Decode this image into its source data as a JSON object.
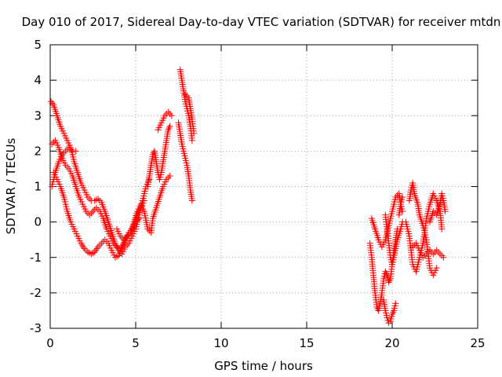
{
  "chart_data": {
    "type": "scatter",
    "title": "Day 010 of 2017, Sidereal Day-to-day VTEC variation (SDTVAR) for receiver mtdn",
    "xlabel": "GPS time / hours",
    "ylabel": "SDTVAR / TECUs",
    "xlim": [
      0,
      25
    ],
    "ylim": [
      -3,
      5
    ],
    "xticks": [
      "0",
      "5",
      "10",
      "15",
      "20",
      "25"
    ],
    "yticks": [
      "-3",
      "-2",
      "-1",
      "0",
      "1",
      "2",
      "3",
      "4",
      "5"
    ],
    "grid": true,
    "marker": "+",
    "series": [
      {
        "name": "SDTVAR",
        "color": "#ff0000",
        "traces": [
          [
            [
              0.05,
              3.4
            ],
            [
              0.2,
              3.3
            ],
            [
              0.4,
              3.0
            ],
            [
              0.6,
              2.7
            ],
            [
              0.8,
              2.5
            ],
            [
              1.0,
              2.3
            ],
            [
              1.2,
              2.1
            ],
            [
              1.4,
              1.7
            ],
            [
              1.6,
              1.4
            ],
            [
              1.8,
              1.1
            ],
            [
              2.0,
              0.9
            ],
            [
              2.2,
              0.7
            ],
            [
              2.4,
              0.6
            ],
            [
              2.6,
              0.6
            ],
            [
              2.8,
              0.65
            ],
            [
              3.0,
              0.55
            ],
            [
              3.2,
              0.3
            ],
            [
              3.4,
              0.0
            ],
            [
              3.6,
              -0.3
            ],
            [
              3.8,
              -0.6
            ],
            [
              4.0,
              -0.8
            ],
            [
              4.2,
              -0.9
            ],
            [
              4.4,
              -0.7
            ],
            [
              4.6,
              -0.6
            ],
            [
              4.8,
              -0.4
            ],
            [
              5.0,
              -0.2
            ],
            [
              5.2,
              0.2
            ],
            [
              5.4,
              0.6
            ],
            [
              5.6,
              1.0
            ],
            [
              5.8,
              1.2
            ]
          ],
          [
            [
              0.1,
              2.2
            ],
            [
              0.3,
              2.3
            ],
            [
              0.5,
              2.1
            ],
            [
              0.7,
              1.8
            ],
            [
              0.9,
              1.6
            ],
            [
              1.1,
              1.5
            ],
            [
              1.3,
              1.3
            ],
            [
              1.5,
              1.0
            ],
            [
              1.7,
              0.7
            ],
            [
              1.9,
              0.5
            ],
            [
              2.1,
              0.3
            ],
            [
              2.3,
              0.2
            ],
            [
              2.5,
              0.3
            ],
            [
              2.7,
              0.4
            ],
            [
              2.9,
              0.3
            ],
            [
              3.1,
              0.1
            ],
            [
              3.3,
              -0.2
            ],
            [
              3.5,
              -0.4
            ],
            [
              3.7,
              -0.6
            ],
            [
              3.9,
              -0.7
            ],
            [
              4.1,
              -0.8
            ],
            [
              4.3,
              -0.6
            ],
            [
              4.5,
              -0.4
            ],
            [
              4.7,
              -0.3
            ],
            [
              4.9,
              -0.1
            ],
            [
              5.1,
              0.2
            ],
            [
              5.3,
              0.4
            ],
            [
              5.5,
              0.6
            ]
          ],
          [
            [
              0.1,
              1.0
            ],
            [
              0.3,
              1.4
            ],
            [
              0.5,
              1.7
            ],
            [
              0.7,
              1.9
            ],
            [
              0.9,
              2.0
            ],
            [
              1.1,
              2.1
            ],
            [
              1.3,
              2.0
            ],
            [
              1.5,
              2.0
            ]
          ],
          [
            [
              0.2,
              1.4
            ],
            [
              0.4,
              1.2
            ],
            [
              0.6,
              1.0
            ],
            [
              0.8,
              0.7
            ],
            [
              1.0,
              0.3
            ],
            [
              1.2,
              0.0
            ],
            [
              1.4,
              -0.2
            ],
            [
              1.6,
              -0.4
            ],
            [
              1.8,
              -0.6
            ],
            [
              2.0,
              -0.75
            ],
            [
              2.2,
              -0.85
            ],
            [
              2.4,
              -0.9
            ],
            [
              2.6,
              -0.85
            ],
            [
              2.8,
              -0.7
            ],
            [
              3.0,
              -0.6
            ],
            [
              3.2,
              -0.5
            ],
            [
              3.4,
              -0.6
            ],
            [
              3.6,
              -0.8
            ],
            [
              3.8,
              -1.0
            ],
            [
              4.0,
              -0.95
            ],
            [
              4.2,
              -0.7
            ],
            [
              4.4,
              -0.5
            ],
            [
              4.6,
              -0.3
            ],
            [
              4.8,
              -0.2
            ],
            [
              5.0,
              0.0
            ],
            [
              5.2,
              0.1
            ]
          ],
          [
            [
              3.9,
              -0.2
            ],
            [
              4.1,
              -0.4
            ],
            [
              4.3,
              -0.5
            ],
            [
              4.5,
              -0.4
            ],
            [
              4.7,
              -0.3
            ],
            [
              4.9,
              0.0
            ],
            [
              5.1,
              0.3
            ],
            [
              5.3,
              0.5
            ],
            [
              5.5,
              0.3
            ],
            [
              5.7,
              -0.2
            ],
            [
              5.9,
              -0.3
            ],
            [
              6.0,
              0.1
            ],
            [
              6.2,
              0.4
            ],
            [
              6.4,
              0.7
            ],
            [
              6.6,
              1.0
            ],
            [
              6.8,
              1.2
            ],
            [
              7.0,
              1.3
            ]
          ],
          [
            [
              5.7,
              1.0
            ],
            [
              5.8,
              1.3
            ],
            [
              5.9,
              1.6
            ],
            [
              6.0,
              1.9
            ],
            [
              6.1,
              2.0
            ],
            [
              6.2,
              1.7
            ],
            [
              6.3,
              1.4
            ],
            [
              6.4,
              1.2
            ],
            [
              6.5,
              1.4
            ],
            [
              6.6,
              1.7
            ],
            [
              6.7,
              2.0
            ],
            [
              6.8,
              2.3
            ],
            [
              6.9,
              2.6
            ],
            [
              7.0,
              2.7
            ]
          ],
          [
            [
              6.3,
              2.6
            ],
            [
              6.5,
              2.8
            ],
            [
              6.7,
              3.0
            ],
            [
              6.9,
              3.1
            ],
            [
              7.1,
              3.0
            ]
          ],
          [
            [
              7.6,
              4.3
            ],
            [
              7.7,
              4.0
            ],
            [
              7.8,
              3.7
            ],
            [
              7.9,
              3.4
            ],
            [
              8.0,
              3.2
            ],
            [
              8.1,
              3.0
            ],
            [
              8.2,
              2.7
            ],
            [
              8.3,
              2.3
            ]
          ],
          [
            [
              7.5,
              2.8
            ],
            [
              7.6,
              2.5
            ],
            [
              7.7,
              2.2
            ],
            [
              7.8,
              2.0
            ],
            [
              7.9,
              1.8
            ],
            [
              8.0,
              1.6
            ],
            [
              8.1,
              1.3
            ],
            [
              8.2,
              0.9
            ],
            [
              8.3,
              0.6
            ]
          ],
          [
            [
              7.9,
              3.6
            ],
            [
              8.1,
              3.5
            ],
            [
              8.2,
              3.2
            ],
            [
              8.3,
              2.9
            ],
            [
              8.4,
              2.5
            ]
          ],
          [
            [
              18.7,
              -0.6
            ],
            [
              18.8,
              -1.0
            ],
            [
              18.9,
              -1.5
            ],
            [
              19.0,
              -2.0
            ],
            [
              19.1,
              -2.4
            ],
            [
              19.2,
              -2.5
            ],
            [
              19.3,
              -2.3
            ],
            [
              19.4,
              -2.0
            ],
            [
              19.5,
              -1.6
            ],
            [
              19.6,
              -1.4
            ],
            [
              19.7,
              -1.5
            ],
            [
              19.8,
              -1.7
            ],
            [
              19.9,
              -1.6
            ],
            [
              20.0,
              -1.2
            ],
            [
              20.1,
              -0.8
            ],
            [
              20.2,
              -0.5
            ],
            [
              20.3,
              -0.2
            ]
          ],
          [
            [
              18.8,
              0.1
            ],
            [
              19.0,
              -0.2
            ],
            [
              19.2,
              -0.5
            ],
            [
              19.4,
              -0.7
            ],
            [
              19.6,
              -0.5
            ],
            [
              19.8,
              -0.1
            ],
            [
              20.0,
              0.3
            ],
            [
              20.2,
              0.7
            ],
            [
              20.4,
              0.8
            ],
            [
              20.5,
              0.5
            ],
            [
              20.6,
              0.3
            ]
          ],
          [
            [
              19.5,
              -2.2
            ],
            [
              19.6,
              -2.5
            ],
            [
              19.7,
              -2.7
            ],
            [
              19.8,
              -2.85
            ],
            [
              19.9,
              -2.8
            ],
            [
              20.0,
              -2.6
            ],
            [
              20.1,
              -2.5
            ],
            [
              20.2,
              -2.3
            ]
          ],
          [
            [
              19.6,
              0.2
            ],
            [
              19.7,
              -0.2
            ],
            [
              19.8,
              -0.6
            ],
            [
              19.9,
              -1.0
            ],
            [
              20.0,
              -1.2
            ],
            [
              20.1,
              -1.0
            ],
            [
              20.3,
              -0.5
            ],
            [
              20.5,
              -0.2
            ],
            [
              20.6,
              0.0
            ]
          ],
          [
            [
              20.8,
              0.0
            ],
            [
              21.0,
              -0.4
            ],
            [
              21.1,
              -0.8
            ],
            [
              21.2,
              -1.2
            ],
            [
              21.4,
              -1.4
            ],
            [
              21.5,
              -1.2
            ],
            [
              21.6,
              -1.0
            ],
            [
              21.8,
              -0.6
            ],
            [
              21.9,
              -0.3
            ],
            [
              22.0,
              0.1
            ],
            [
              22.2,
              0.5
            ],
            [
              22.4,
              0.8
            ],
            [
              22.6,
              0.6
            ],
            [
              22.8,
              0.3
            ],
            [
              22.9,
              -0.2
            ]
          ],
          [
            [
              21.0,
              0.6
            ],
            [
              21.1,
              0.9
            ],
            [
              21.2,
              1.1
            ],
            [
              21.3,
              0.8
            ],
            [
              21.5,
              0.5
            ],
            [
              21.6,
              0.2
            ],
            [
              21.8,
              -0.1
            ],
            [
              22.0,
              -0.5
            ],
            [
              22.1,
              -0.9
            ],
            [
              22.2,
              -1.3
            ],
            [
              22.4,
              -1.5
            ],
            [
              22.6,
              -1.3
            ]
          ],
          [
            [
              21.2,
              -0.7
            ],
            [
              21.4,
              -0.6
            ],
            [
              21.6,
              -0.8
            ],
            [
              21.8,
              -1.0
            ],
            [
              22.0,
              -0.9
            ],
            [
              22.2,
              -0.8
            ],
            [
              22.4,
              -0.9
            ],
            [
              22.6,
              -0.8
            ],
            [
              22.8,
              -0.9
            ],
            [
              23.0,
              -1.0
            ]
          ],
          [
            [
              22.2,
              0.0
            ],
            [
              22.4,
              0.3
            ],
            [
              22.6,
              0.2
            ],
            [
              22.8,
              0.5
            ],
            [
              22.9,
              0.8
            ],
            [
              23.0,
              0.6
            ],
            [
              23.1,
              0.3
            ]
          ],
          [
            [
              20.4,
              0.2
            ],
            [
              20.5,
              0.5
            ],
            [
              20.6,
              0.7
            ]
          ]
        ]
      }
    ]
  }
}
